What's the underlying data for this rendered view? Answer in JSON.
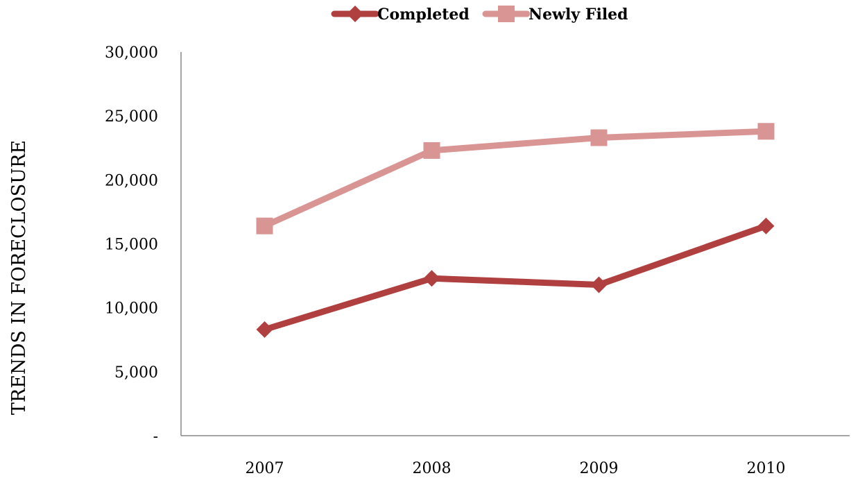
{
  "chart_data": {
    "type": "line",
    "title": "",
    "xlabel": "",
    "ylabel": "TRENDS IN FORECLOSURE",
    "categories": [
      "2007",
      "2008",
      "2009",
      "2010"
    ],
    "ylim": [
      0,
      30000
    ],
    "yticks": [
      0,
      5000,
      10000,
      15000,
      20000,
      25000,
      30000
    ],
    "ytick_labels": [
      "-",
      "5,000",
      "10,000",
      "15,000",
      "20,000",
      "25,000",
      "30,000"
    ],
    "grid": false,
    "legend_position": "top",
    "series": [
      {
        "name": "Completed",
        "values": [
          8300,
          12300,
          11800,
          16400
        ],
        "color": "#b04040",
        "marker": "diamond"
      },
      {
        "name": "Newly Filed",
        "values": [
          16400,
          22300,
          23300,
          23800
        ],
        "color": "#d99594",
        "marker": "square"
      }
    ]
  }
}
